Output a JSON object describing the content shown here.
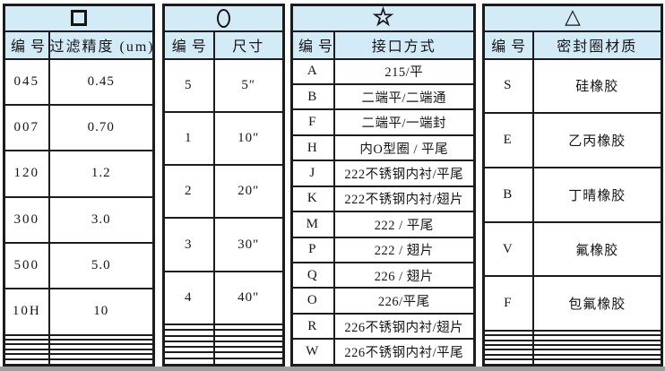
{
  "page": {
    "background": "#ffffff",
    "table_border_color": "#1c1c1c",
    "header_fill_color": "#d3eaf7",
    "text_color": "#151515",
    "bottom_edge_color": "#9e9e9e"
  },
  "tables": [
    {
      "id": "filtration-precision",
      "symbol": "□",
      "symbol_shape": "square",
      "symbol_icon": "square-icon",
      "columns": [
        "编号",
        "过滤精度 (um)"
      ],
      "rows": [
        [
          "045",
          "0.45"
        ],
        [
          "007",
          "0.70"
        ],
        [
          "120",
          "1.2"
        ],
        [
          "300",
          "3.0"
        ],
        [
          "500",
          "5.0"
        ],
        [
          "10H",
          "10"
        ],
        [
          "",
          ""
        ],
        [
          "",
          ""
        ],
        [
          "",
          ""
        ],
        [
          "",
          ""
        ],
        [
          "",
          ""
        ],
        [
          "",
          ""
        ]
      ]
    },
    {
      "id": "size",
      "symbol": "○",
      "symbol_shape": "circle",
      "symbol_icon": "circle-icon",
      "columns": [
        "编号",
        "尺寸"
      ],
      "rows": [
        [
          "5",
          "5″"
        ],
        [
          "1",
          "10″"
        ],
        [
          "2",
          "20″"
        ],
        [
          "3",
          "30″"
        ],
        [
          "4",
          "40″"
        ],
        [
          "",
          ""
        ],
        [
          "",
          ""
        ],
        [
          "",
          ""
        ],
        [
          "",
          ""
        ],
        [
          "",
          ""
        ],
        [
          "",
          ""
        ],
        [
          "",
          ""
        ]
      ]
    },
    {
      "id": "connection-type",
      "symbol": "☆",
      "symbol_shape": "star",
      "symbol_icon": "star-icon",
      "columns": [
        "编号",
        "接口方式"
      ],
      "rows": [
        [
          "A",
          "215/平"
        ],
        [
          "B",
          "二端平/二端通"
        ],
        [
          "F",
          "二端平/一端封"
        ],
        [
          "H",
          "内O型圈 / 平尾"
        ],
        [
          "J",
          "222不锈钢内衬/平尾"
        ],
        [
          "K",
          "222不锈钢内衬/翅片"
        ],
        [
          "M",
          "222 / 平尾"
        ],
        [
          "P",
          "222 / 翅片"
        ],
        [
          "Q",
          "226 / 翅片"
        ],
        [
          "O",
          "226/平尾"
        ],
        [
          "R",
          "226不锈钢内衬/翅片"
        ],
        [
          "W",
          "226不锈钢内衬/平尾"
        ]
      ]
    },
    {
      "id": "seal-material",
      "symbol": "△",
      "symbol_shape": "triangle",
      "symbol_icon": "triangle-icon",
      "columns": [
        "编号",
        "密封圈材质"
      ],
      "rows": [
        [
          "S",
          "硅橡胶"
        ],
        [
          "E",
          "乙丙橡胶"
        ],
        [
          "B",
          "丁晴橡胶"
        ],
        [
          "V",
          "氟橡胶"
        ],
        [
          "F",
          "包氟橡胶"
        ],
        [
          "",
          ""
        ],
        [
          "",
          ""
        ],
        [
          "",
          ""
        ],
        [
          "",
          ""
        ],
        [
          "",
          ""
        ],
        [
          "",
          ""
        ],
        [
          "",
          ""
        ]
      ]
    }
  ]
}
